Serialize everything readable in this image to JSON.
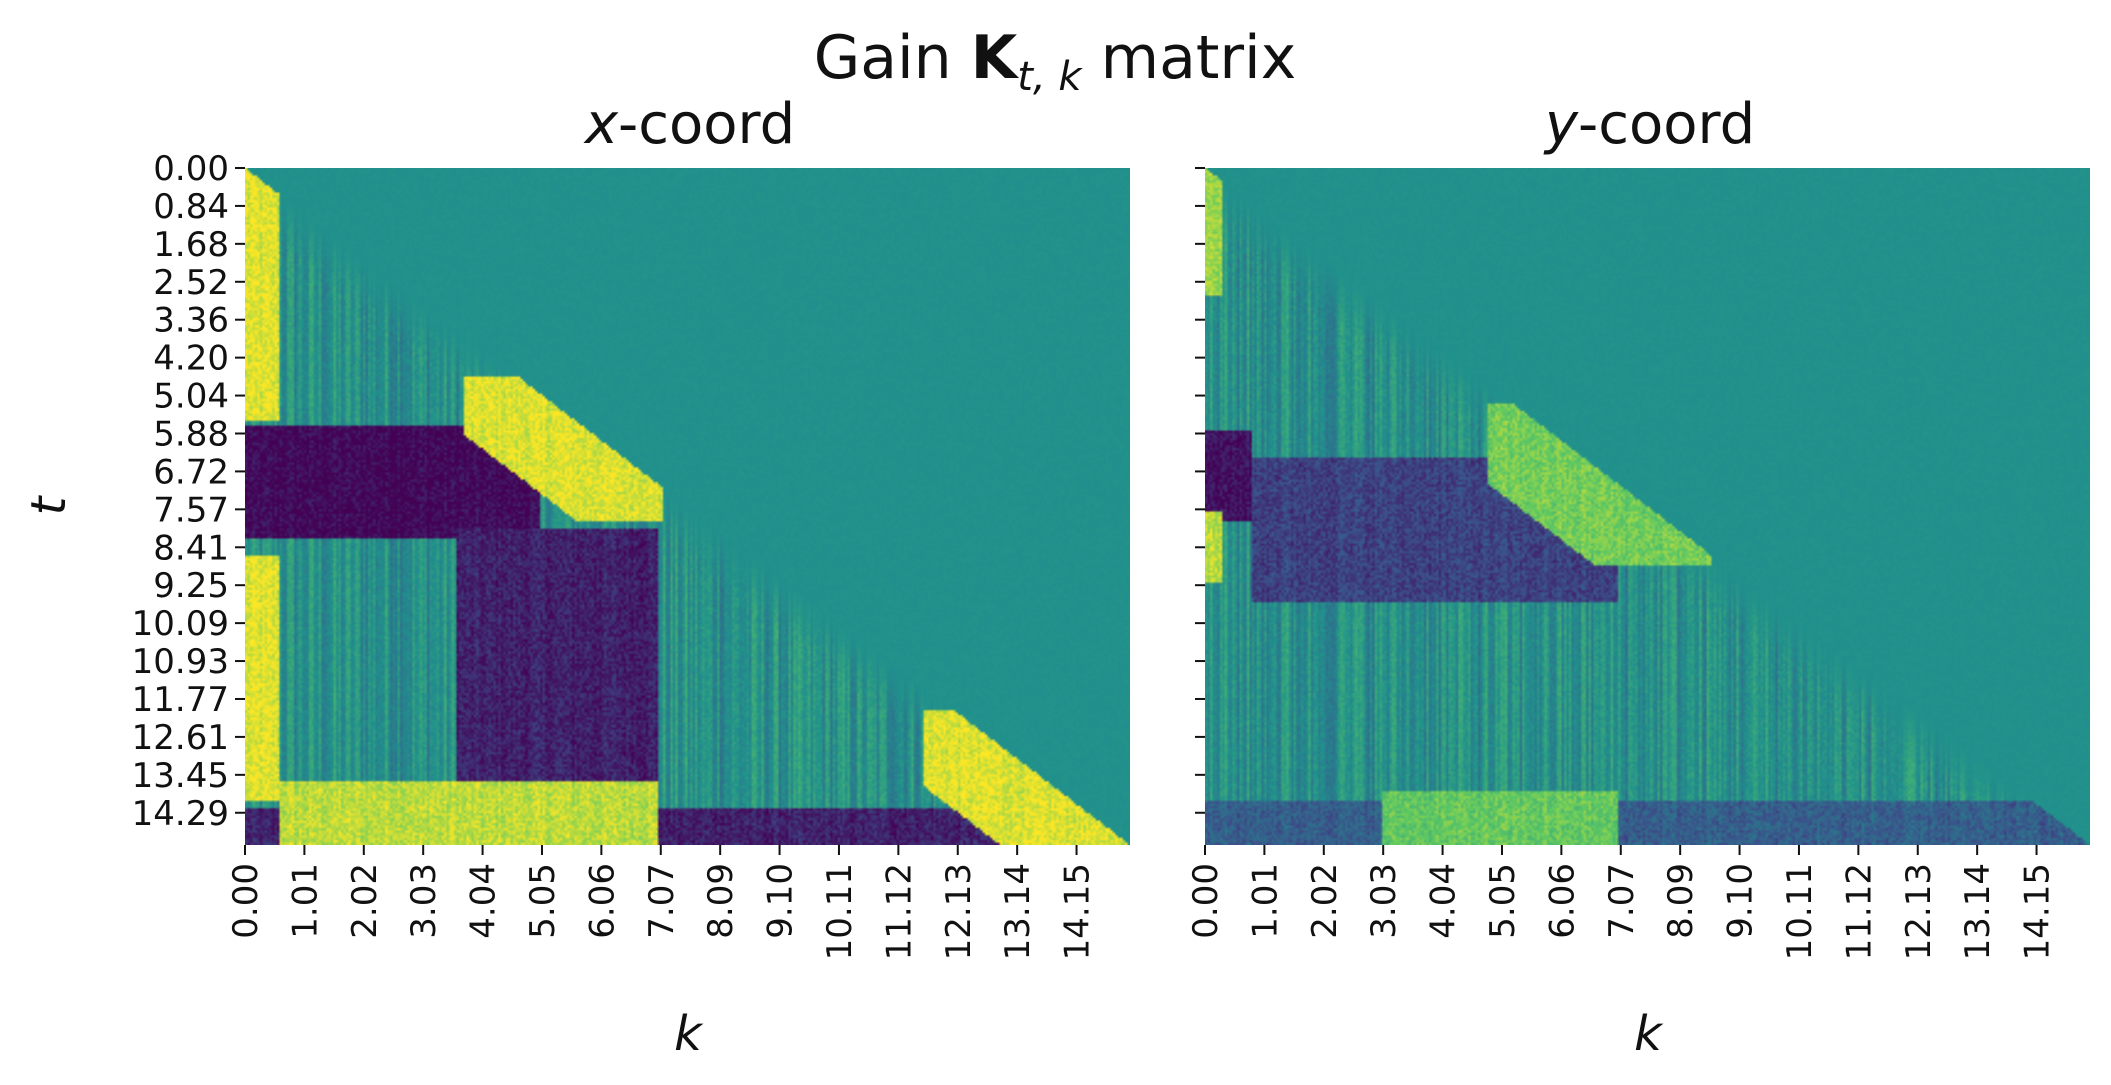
{
  "chart_data": {
    "type": "heatmap",
    "title": {
      "prefix": "Gain ",
      "symbol": "K",
      "subscript": "t, k",
      "suffix": " matrix"
    },
    "colormap": "viridis",
    "colors": {
      "low": "#440154",
      "mid": "#21918c",
      "high": "#fde725"
    },
    "shared_y": true,
    "y_axis": {
      "label": "t",
      "ticks": [
        "0.00",
        "0.84",
        "1.68",
        "2.52",
        "3.36",
        "4.20",
        "5.04",
        "5.88",
        "6.72",
        "7.57",
        "8.41",
        "9.25",
        "10.09",
        "10.93",
        "11.77",
        "12.61",
        "13.45",
        "14.29"
      ],
      "range": [
        0.0,
        15.0
      ]
    },
    "x_axis": {
      "label": "k",
      "ticks": [
        "0.00",
        "1.01",
        "2.02",
        "3.03",
        "4.04",
        "5.05",
        "6.06",
        "7.07",
        "8.09",
        "9.10",
        "10.11",
        "11.12",
        "12.13",
        "13.14",
        "14.15"
      ],
      "range": [
        0.0,
        15.0
      ]
    },
    "structure": "lower-triangular (k <= t); above the diagonal the gain is 0 (mid color)",
    "panels": [
      {
        "title_italic": "x",
        "title_rest": "-coord",
        "features": [
          {
            "kind": "high",
            "k": [
              0.0,
              0.6
            ],
            "t": [
              0.0,
              5.6
            ],
            "level": 0.95
          },
          {
            "kind": "low",
            "k": [
              0.0,
              5.0
            ],
            "t": [
              5.7,
              8.2
            ],
            "level": 0.02
          },
          {
            "kind": "high",
            "k": [
              3.7,
              7.1
            ],
            "t": [
              4.6,
              7.8
            ],
            "level": 0.95,
            "near_diagonal": true
          },
          {
            "kind": "high",
            "k": [
              0.0,
              0.6
            ],
            "t": [
              8.6,
              14.0
            ],
            "level": 0.95
          },
          {
            "kind": "low",
            "k": [
              3.6,
              7.0
            ],
            "t": [
              8.0,
              15.0
            ],
            "level": 0.1
          },
          {
            "kind": "low",
            "k": [
              0.0,
              15.0
            ],
            "t": [
              14.2,
              15.0
            ],
            "level": 0.1
          },
          {
            "kind": "high",
            "k": [
              0.6,
              7.0
            ],
            "t": [
              13.6,
              15.0
            ],
            "level": 0.9
          },
          {
            "kind": "high",
            "k": [
              11.5,
              15.0
            ],
            "t": [
              12.0,
              15.0
            ],
            "level": 0.95,
            "near_diagonal": true
          }
        ]
      },
      {
        "title_italic": "y",
        "title_rest": "-coord",
        "features": [
          {
            "kind": "high",
            "k": [
              0.0,
              0.3
            ],
            "t": [
              0.0,
              2.8
            ],
            "level": 0.85
          },
          {
            "kind": "low",
            "k": [
              0.0,
              0.8
            ],
            "t": [
              5.8,
              7.8
            ],
            "level": 0.05
          },
          {
            "kind": "low",
            "k": [
              0.8,
              7.0
            ],
            "t": [
              6.4,
              9.6
            ],
            "level": 0.2
          },
          {
            "kind": "high",
            "k": [
              4.8,
              8.6
            ],
            "t": [
              5.2,
              8.8
            ],
            "level": 0.78,
            "near_diagonal": true
          },
          {
            "kind": "high",
            "k": [
              0.0,
              0.3
            ],
            "t": [
              7.6,
              9.2
            ],
            "level": 0.9
          },
          {
            "kind": "low",
            "k": [
              0.0,
              15.0
            ],
            "t": [
              14.0,
              15.0
            ],
            "level": 0.3
          },
          {
            "kind": "high",
            "k": [
              3.0,
              7.0
            ],
            "t": [
              13.8,
              15.0
            ],
            "level": 0.75
          }
        ]
      }
    ]
  }
}
